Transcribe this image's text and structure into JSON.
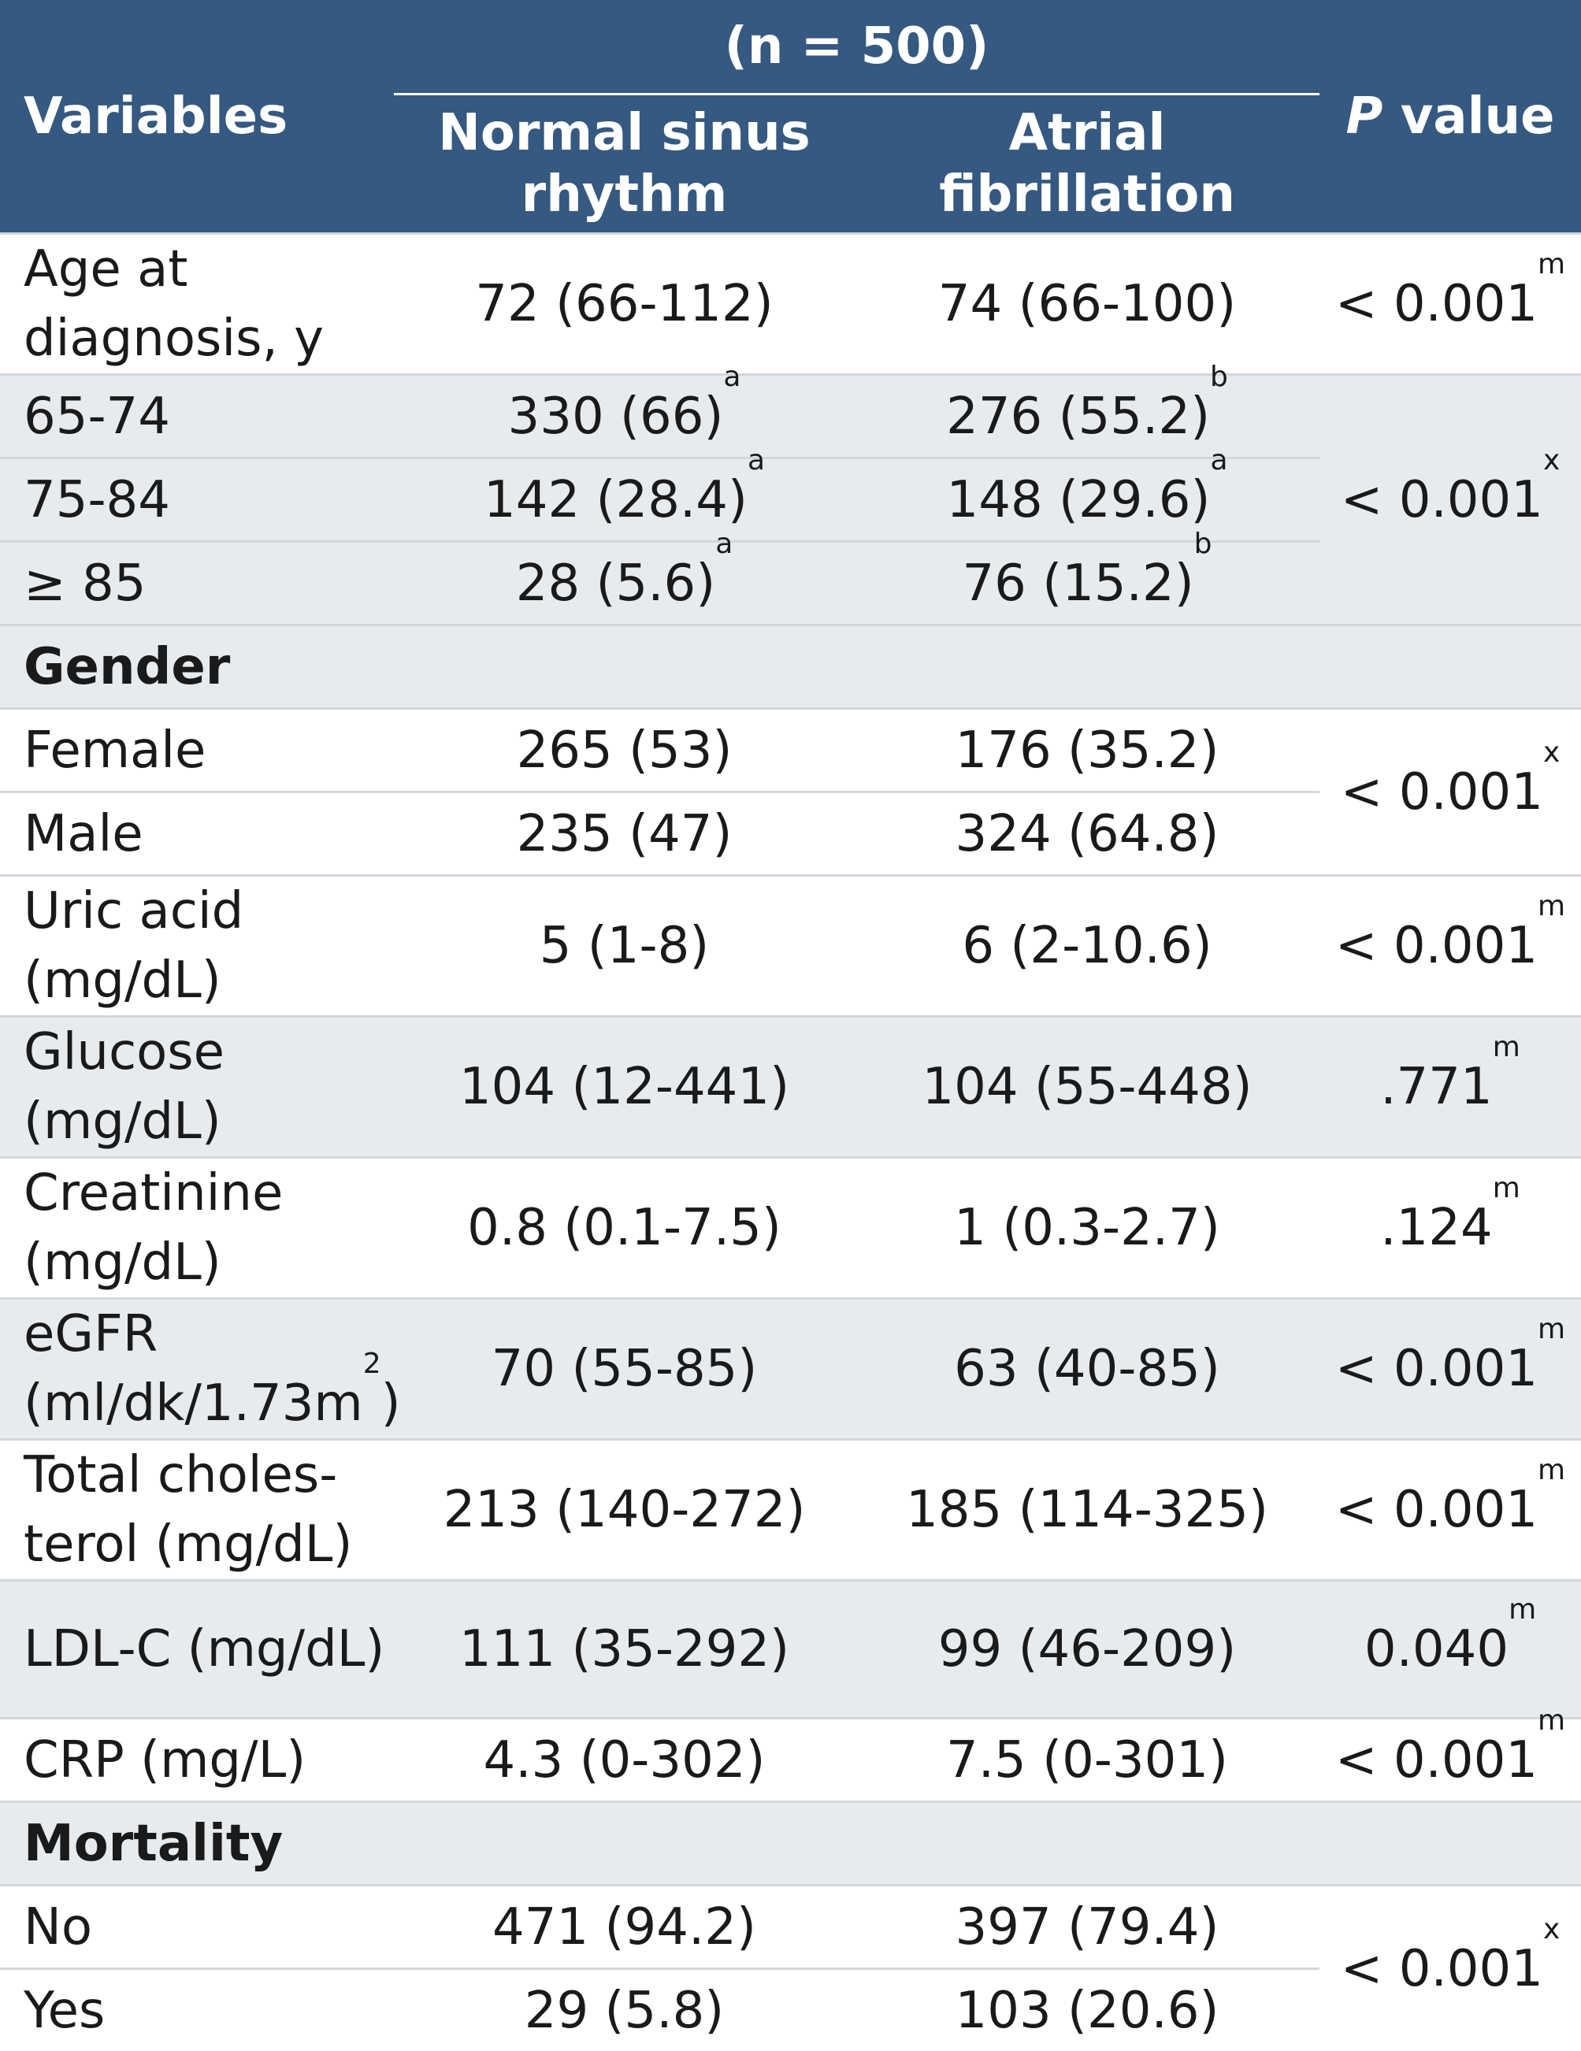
{
  "header": {
    "variables": "Variables",
    "n_label": "(n = 500)",
    "col_nsr": "Normal sinus rhythm",
    "col_af": "Atrial fibrillation",
    "p_italic": "P",
    "p_rest": " value"
  },
  "rows": {
    "age": {
      "label": "Age at diagnosis, y",
      "nsr": "72 (66-112)",
      "af": "74 (66-100)",
      "p": "< 0.001",
      "p_sup": "m"
    },
    "age_65": {
      "label": "65-74",
      "nsr": "330 (66)",
      "nsr_sup": "a",
      "af": "276 (55.2)",
      "af_sup": "b"
    },
    "age_75": {
      "label": "75-84",
      "nsr": "142 (28.4)",
      "nsr_sup": "a",
      "af": "148 (29.6)",
      "af_sup": "a"
    },
    "age_85": {
      "label": "≥ 85",
      "nsr": "28 (5.6)",
      "nsr_sup": "a",
      "af": "76 (15.2)",
      "af_sup": "b"
    },
    "age_group_p": {
      "p": "< 0.001",
      "p_sup": "x"
    },
    "gender": {
      "label": "Gender"
    },
    "female": {
      "label": "Female",
      "nsr": "265 (53)",
      "af": "176 (35.2)"
    },
    "male": {
      "label": "Male",
      "nsr": "235 (47)",
      "af": "324 (64.8)"
    },
    "gender_p": {
      "p": "< 0.001",
      "p_sup": "x"
    },
    "uric": {
      "label": "Uric acid (mg/dL)",
      "nsr": "5 (1-8)",
      "af": "6 (2-10.6)",
      "p": "< 0.001",
      "p_sup": "m"
    },
    "glucose": {
      "label": "Glucose (mg/dL)",
      "nsr": "104 (12-441)",
      "af": "104 (55-448)",
      "p": ".771",
      "p_sup": "m"
    },
    "creatinine": {
      "label": "Creatinine (mg/dL)",
      "nsr": "0.8 (0.1-7.5)",
      "af": "1 (0.3-2.7)",
      "p": ".124",
      "p_sup": "m"
    },
    "egfr": {
      "label_a": "eGFR",
      "label_b": "(ml/dk/1.73m",
      "label_sup": "2",
      "label_c": ")",
      "nsr": "70 (55-85)",
      "af": "63 (40-85)",
      "p": "< 0.001",
      "p_sup": "m"
    },
    "chol": {
      "label_a": "Total choles-",
      "label_b": "terol (mg/dL)",
      "nsr": "213 (140-272)",
      "af": "185 (114-325)",
      "p": "< 0.001",
      "p_sup": "m"
    },
    "ldl": {
      "label": "LDL-C (mg/dL)",
      "nsr": "111 (35-292)",
      "af": "99 (46-209)",
      "p": "0.040",
      "p_sup": "m"
    },
    "crp": {
      "label": "CRP (mg/L)",
      "nsr": "4.3 (0-302)",
      "af": "7.5 (0-301)",
      "p": "< 0.001",
      "p_sup": "m"
    },
    "mortality": {
      "label": "Mortality"
    },
    "no": {
      "label": "No",
      "nsr": "471 (94.2)",
      "af": "397 (79.4)"
    },
    "yes": {
      "label": "Yes",
      "nsr": "29 (5.8)",
      "af": "103 (20.6)"
    },
    "mortality_p": {
      "p": "< 0.001",
      "p_sup": "x"
    }
  }
}
